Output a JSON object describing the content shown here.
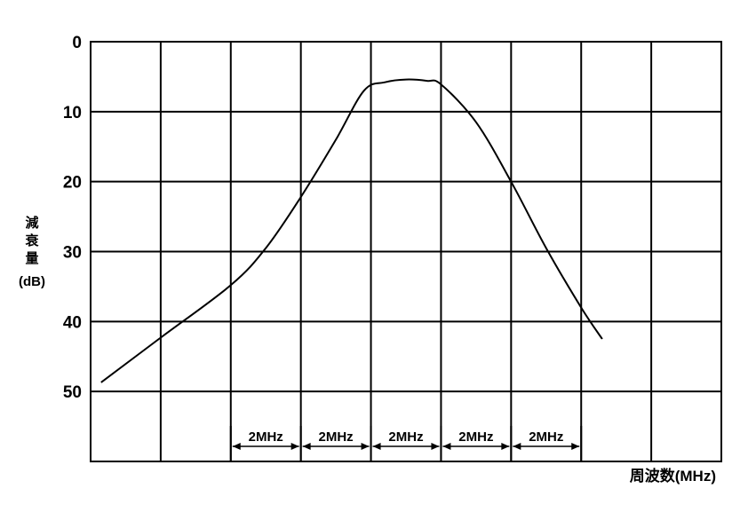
{
  "chart_data": {
    "type": "line",
    "title": "",
    "xlabel": "周波数(MHz)",
    "ylabel_chars": [
      "減",
      "衰",
      "量"
    ],
    "ylabel_unit": "(dB)",
    "ylim": [
      0,
      60
    ],
    "y_inverted": true,
    "y_ticks": [
      "0",
      "10",
      "20",
      "30",
      "40",
      "50"
    ],
    "grid": true,
    "grid_cols": 9,
    "bandwidth_labels": [
      "2MHz",
      "2MHz",
      "2MHz",
      "2MHz",
      "2MHz"
    ],
    "series": [
      {
        "x": [
          0.15,
          1.0,
          2.0,
          2.5,
          3.0,
          3.5,
          3.9,
          4.2,
          4.5,
          4.8,
          5.0,
          5.5,
          6.0,
          6.5,
          7.0,
          7.3
        ],
        "values": [
          48.7,
          42.3,
          34.8,
          29.5,
          22.2,
          14.0,
          7.0,
          5.8,
          5.4,
          5.6,
          6.1,
          11.5,
          20.0,
          29.5,
          38.0,
          42.5
        ]
      }
    ]
  }
}
